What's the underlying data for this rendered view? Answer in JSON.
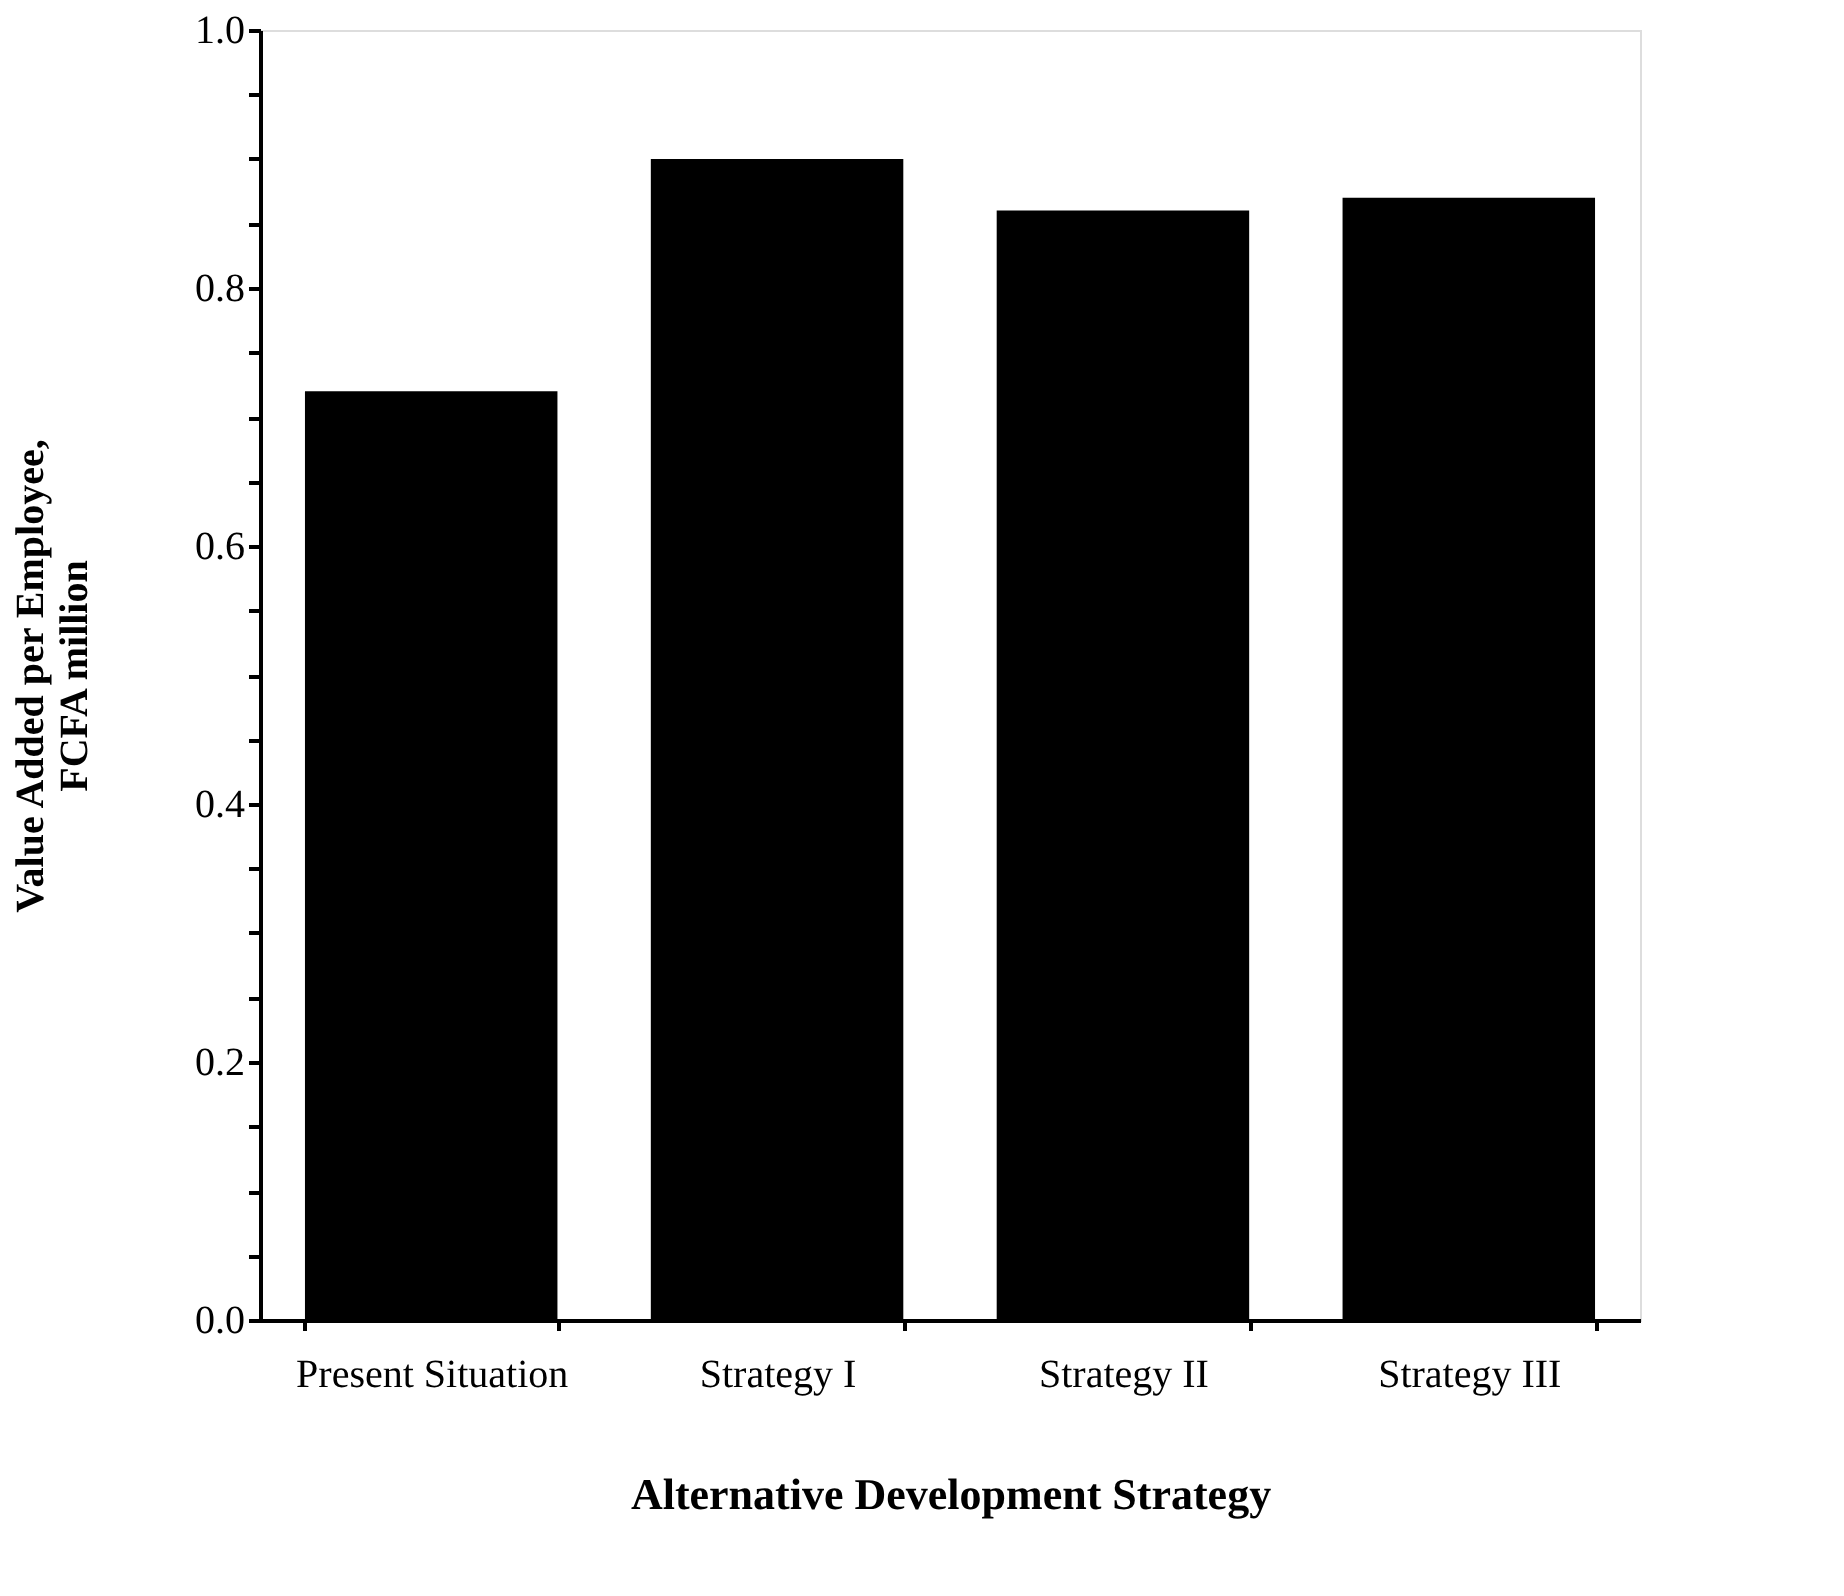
{
  "chart_data": {
    "type": "bar",
    "xlabel": "Alternative Development Strategy",
    "ylabel": "Value Added per Employee,\nFCFA million",
    "categories": [
      "Present Situation",
      "Strategy I",
      "Strategy II",
      "Strategy III"
    ],
    "values": [
      0.72,
      0.9,
      0.86,
      0.87
    ],
    "color": "#000000",
    "ylim": [
      0,
      1
    ],
    "yticks": [
      {
        "value": 0,
        "label": "0.0"
      },
      {
        "value": 0.05,
        "label": null
      },
      {
        "value": 0.1,
        "label": null
      },
      {
        "value": 0.15,
        "label": null
      },
      0.2,
      {
        "value": 0.25,
        "label": null
      },
      {
        "value": 0.3,
        "label": null
      },
      {
        "value": 0.35,
        "label": null
      },
      0.4,
      {
        "value": 0.45,
        "label": null
      },
      {
        "value": 0.5,
        "label": null
      },
      {
        "value": 0.55,
        "label": null
      },
      0.6,
      {
        "value": 0.65,
        "label": null
      },
      {
        "value": 0.7,
        "label": null
      },
      {
        "value": 0.75,
        "label": null
      },
      0.8,
      {
        "value": 0.85,
        "label": null
      },
      {
        "value": 0.9,
        "label": null
      },
      {
        "value": 0.95,
        "label": null
      },
      {
        "value": 1,
        "label": "1.0"
      }
    ],
    "grid": false
  }
}
